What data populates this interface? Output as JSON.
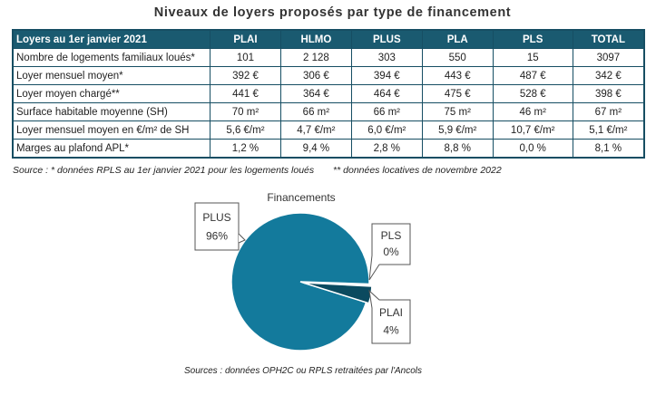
{
  "title": "Niveaux de loyers proposés par type de financement",
  "table": {
    "header_label": "Loyers au 1er janvier 2021",
    "columns": [
      "PLAI",
      "HLMO",
      "PLUS",
      "PLA",
      "PLS",
      "TOTAL"
    ],
    "rows": [
      {
        "label": "Nombre de logements familiaux loués*",
        "values": [
          "101",
          "2 128",
          "303",
          "550",
          "15",
          "3097"
        ]
      },
      {
        "label": "Loyer mensuel moyen*",
        "values": [
          "392 €",
          "306 €",
          "394 €",
          "443 €",
          "487 €",
          "342 €"
        ]
      },
      {
        "label": "Loyer moyen chargé**",
        "values": [
          "441 €",
          "364 €",
          "464 €",
          "475 €",
          "528 €",
          "398 €"
        ]
      },
      {
        "label": "Surface habitable moyenne (SH)",
        "values": [
          "70 m²",
          "66 m²",
          "66 m²",
          "75 m²",
          "46 m²",
          "67 m²"
        ]
      },
      {
        "label": "Loyer mensuel moyen en €/m² de SH",
        "values": [
          "5,6 €/m²",
          "4,7 €/m²",
          "6,0 €/m²",
          "5,9 €/m²",
          "10,7 €/m²",
          "5,1 €/m²"
        ]
      },
      {
        "label": "Marges au plafond APL*",
        "values": [
          "1,2 %",
          "9,4 %",
          "2,8 %",
          "8,8 %",
          "0,0 %",
          "8,1 %"
        ]
      }
    ]
  },
  "source_note_1": "Source : * données RPLS au 1er janvier 2021 pour les logements loués",
  "source_note_2": "** données locatives de novembre 2022",
  "chart_data": {
    "type": "pie",
    "title": "Financements",
    "slices": [
      {
        "label": "PLUS",
        "value": 96,
        "display": "96%",
        "color": "#137a9c"
      },
      {
        "label": "PLS",
        "value": 0,
        "display": "0%",
        "color": "#137a9c"
      },
      {
        "label": "PLAI",
        "value": 4,
        "display": "4%",
        "color": "#0b4a5f"
      }
    ]
  },
  "chart_source": "Sources : données OPH2C ou RPLS retraitées par l'Ancols"
}
